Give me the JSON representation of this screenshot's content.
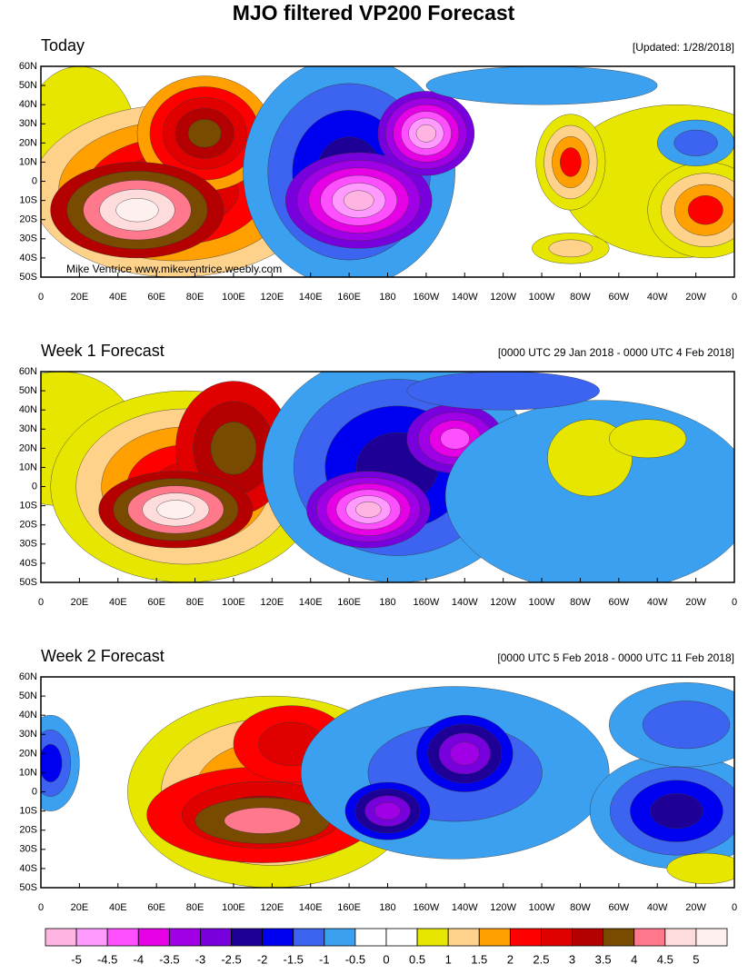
{
  "title": "MJO filtered VP200 Forecast",
  "y_labels": [
    "60N",
    "50N",
    "40N",
    "30N",
    "20N",
    "10N",
    "0",
    "10S",
    "20S",
    "30S",
    "40S",
    "50S"
  ],
  "x_labels": [
    "0",
    "20E",
    "40E",
    "60E",
    "80E",
    "100E",
    "120E",
    "140E",
    "160E",
    "180",
    "160W",
    "140W",
    "120W",
    "100W",
    "80W",
    "60W",
    "40W",
    "20W",
    "0"
  ],
  "panels": [
    {
      "title": "Today",
      "subtitle": "[Updated: 1/28/2018]",
      "watermark": "Mike Ventrice www.mikeventrice.weebly.com"
    },
    {
      "title": "Week 1 Forecast",
      "subtitle": "[0000 UTC 29 Jan 2018 - 0000 UTC 4 Feb 2018]"
    },
    {
      "title": "Week 2 Forecast",
      "subtitle": "[0000 UTC 5 Feb 2018 - 0000 UTC 11 Feb 2018]"
    }
  ],
  "colorbar": {
    "levels": [
      -5,
      -4.5,
      -4,
      -3.5,
      -3,
      -2.5,
      -2,
      -1.5,
      -1,
      -0.5,
      0,
      0.5,
      1,
      1.5,
      2,
      2.5,
      3,
      3.5,
      4,
      4.5,
      5
    ],
    "colors": [
      "#ffb4e1",
      "#ff9bff",
      "#ff50ff",
      "#e600e6",
      "#a000e6",
      "#7800dc",
      "#1e0096",
      "#0000f0",
      "#3c64f0",
      "#3ca0f0",
      "#ffffff",
      "#ffffff",
      "#e6e600",
      "#ffd28c",
      "#ffa000",
      "#ff0000",
      "#e10000",
      "#b40000",
      "#784b00",
      "#ff788c",
      "#ffdcdc",
      "#fff0f0"
    ]
  }
}
